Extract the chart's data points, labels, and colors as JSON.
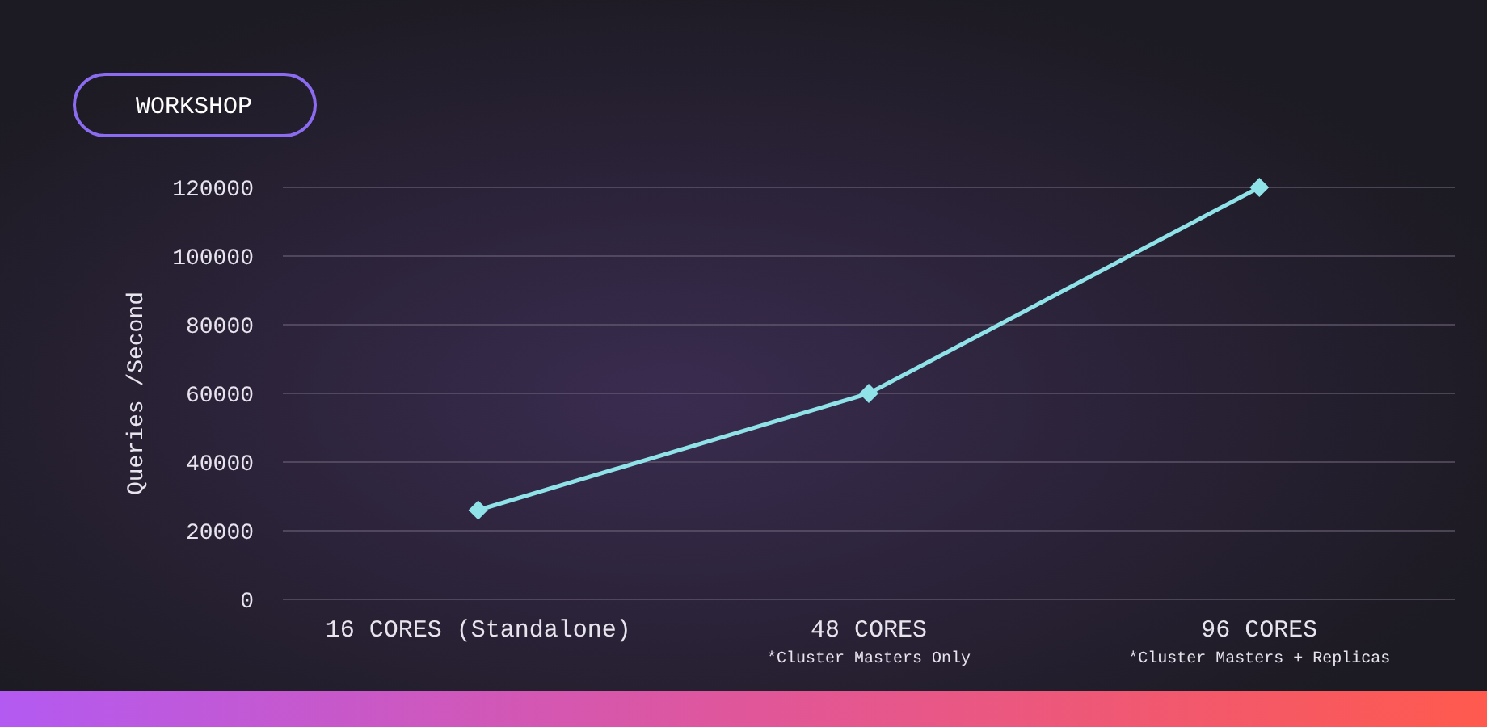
{
  "chart_data": {
    "type": "line",
    "title": "WORKSHOP",
    "ylabel": "Queries /Second",
    "categories": [
      "16 CORES (Standalone)",
      "48 CORES\n*Cluster Masters Only",
      "96 CORES\n*Cluster Masters + Replicas"
    ],
    "series": [
      {
        "color": "#8fe3e8",
        "values": [
          26000,
          60000,
          120000
        ]
      }
    ],
    "ylim": [
      0,
      120000
    ],
    "yticks": [
      0,
      20000,
      40000,
      60000,
      80000,
      100000,
      120000
    ],
    "grid": "y",
    "marker": "diamond",
    "line_style": "solid"
  }
}
